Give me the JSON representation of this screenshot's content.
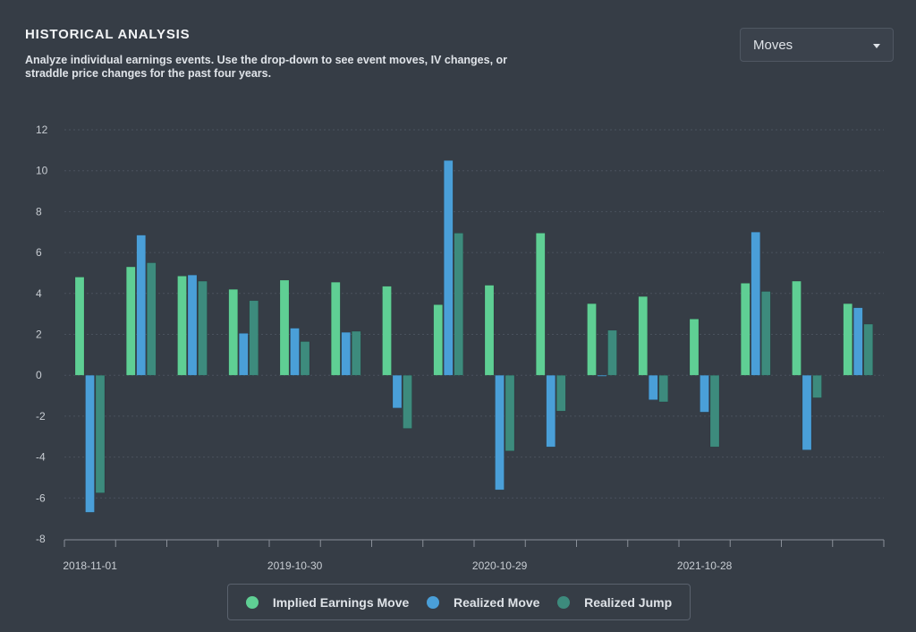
{
  "header": {
    "title": "HISTORICAL ANALYSIS",
    "description": "Analyze individual earnings events. Use the drop-down to see event moves, IV changes, or straddle price changes for the past four years."
  },
  "dropdown": {
    "selected": "Moves",
    "icon": "caret-down-icon"
  },
  "legend": {
    "items": [
      {
        "label": "Implied Earnings Move",
        "color": "#5fcf94"
      },
      {
        "label": "Realized Move",
        "color": "#4a9fd8"
      },
      {
        "label": "Realized Jump",
        "color": "#3d8b7d"
      }
    ]
  },
  "chart_data": {
    "type": "bar",
    "ylim": [
      -8,
      12
    ],
    "yticks": [
      -8,
      -6,
      -4,
      -2,
      0,
      2,
      4,
      6,
      8,
      10,
      12
    ],
    "xtick_labels": [
      "2018-11-01",
      "2019-10-30",
      "2020-10-29",
      "2021-10-28"
    ],
    "grid": true,
    "legend_position": "bottom-center",
    "series": [
      {
        "name": "Implied Earnings Move",
        "color": "#5fcf94",
        "values": [
          4.8,
          5.3,
          4.85,
          4.2,
          4.65,
          4.55,
          4.35,
          3.45,
          4.4,
          6.95,
          3.5,
          3.85,
          2.75,
          4.5,
          4.6,
          3.5
        ]
      },
      {
        "name": "Realized Move",
        "color": "#4a9fd8",
        "values": [
          -6.7,
          6.85,
          4.9,
          2.05,
          2.3,
          2.1,
          -1.6,
          10.5,
          -5.6,
          -3.5,
          -0.05,
          -1.2,
          -1.8,
          7.0,
          -3.65,
          3.3
        ]
      },
      {
        "name": "Realized Jump",
        "color": "#3d8b7d",
        "values": [
          -5.75,
          5.5,
          4.6,
          3.65,
          1.65,
          2.15,
          -2.6,
          6.95,
          -3.7,
          -1.75,
          2.2,
          -1.3,
          -3.5,
          4.1,
          -1.1,
          2.5
        ]
      }
    ]
  }
}
